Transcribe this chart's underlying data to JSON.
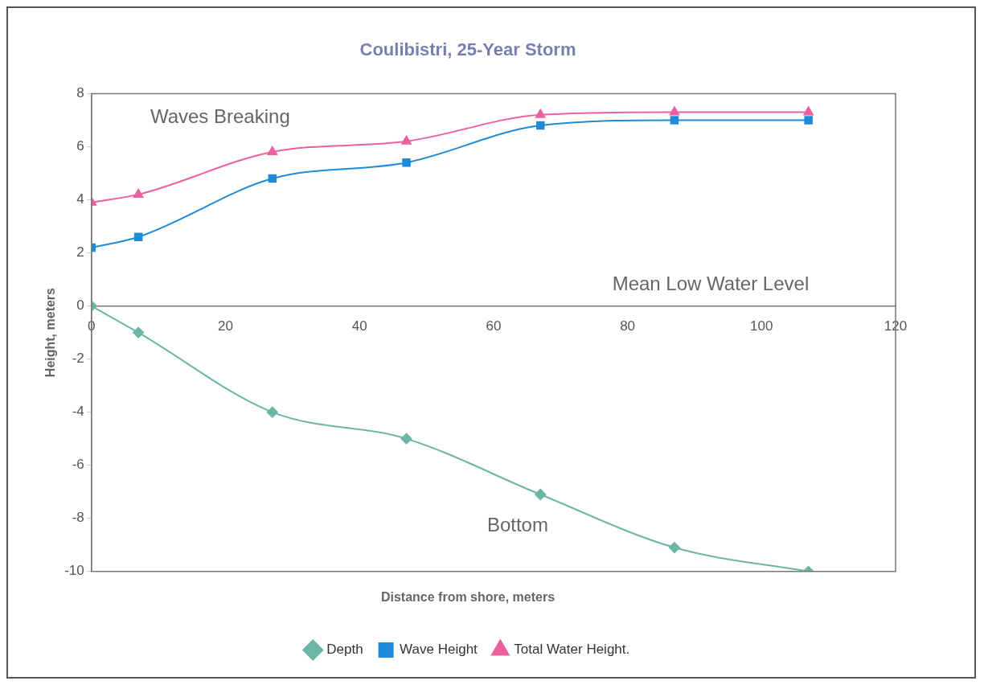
{
  "chart_data": {
    "type": "line",
    "title": "Coulibistri, 25-Year Storm",
    "xlabel": "Distance from shore, meters",
    "ylabel": "Height, meters",
    "x": [
      0,
      7,
      27,
      47,
      67,
      87,
      107
    ],
    "series": [
      {
        "name": "Depth",
        "color": "#6db5a6",
        "marker": "diamond",
        "values": [
          0,
          -1,
          -4,
          -5,
          -7.1,
          -9.1,
          -10
        ]
      },
      {
        "name": "Wave Height",
        "color": "#1f8ad8",
        "marker": "square",
        "values": [
          2.2,
          2.6,
          4.8,
          5.4,
          6.8,
          7.0,
          7.0
        ]
      },
      {
        "name": "Total Water Height.",
        "color": "#ec5fa0",
        "marker": "triangle",
        "values": [
          3.9,
          4.2,
          5.8,
          6.2,
          7.2,
          7.3,
          7.3
        ]
      }
    ],
    "xlim": [
      0,
      120
    ],
    "xticks": [
      0,
      20,
      40,
      60,
      80,
      100,
      120
    ],
    "ylim": [
      -10,
      8
    ],
    "yticks": [
      -10,
      -8,
      -6,
      -4,
      -2,
      0,
      2,
      4,
      6,
      8
    ],
    "annotations": [
      "Waves Breaking",
      "Mean Low Water Level",
      "Bottom"
    ],
    "grid": false,
    "legend": "bottom"
  }
}
